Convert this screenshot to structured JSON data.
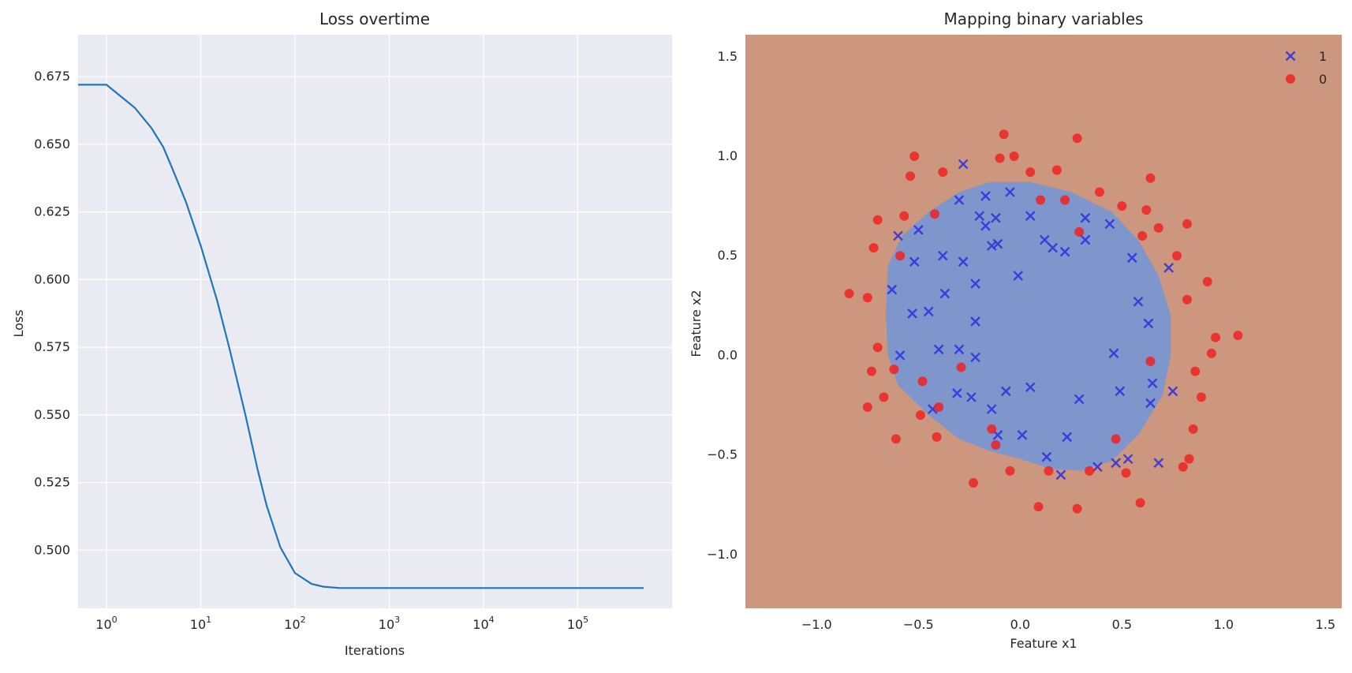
{
  "chart_data": [
    {
      "type": "line",
      "title": "Loss overtime",
      "xlabel": "Iterations",
      "ylabel": "Loss",
      "xscale": "log",
      "xlim": [
        0.5,
        1000000
      ],
      "ylim": [
        0.4785,
        0.6905
      ],
      "x_tick_labels": [
        "10^0",
        "10^1",
        "10^2",
        "10^3",
        "10^4",
        "10^5"
      ],
      "y_ticks": [
        0.5,
        0.525,
        0.55,
        0.575,
        0.6,
        0.625,
        0.65,
        0.675
      ],
      "y_tick_labels": [
        "0.500",
        "0.525",
        "0.550",
        "0.575",
        "0.600",
        "0.625",
        "0.650",
        "0.675"
      ],
      "grid": true,
      "series": [
        {
          "color": "#1f77b4",
          "x": [
            0.5,
            1,
            2,
            3,
            4,
            5,
            7,
            10,
            15,
            20,
            30,
            40,
            50,
            70,
            100,
            150,
            200,
            300,
            500,
            1000,
            10000,
            100000,
            500000
          ],
          "y": [
            0.672,
            0.672,
            0.6635,
            0.656,
            0.649,
            0.641,
            0.6285,
            0.6125,
            0.592,
            0.575,
            0.5495,
            0.53,
            0.5165,
            0.501,
            0.4915,
            0.4875,
            0.4865,
            0.486,
            0.486,
            0.486,
            0.486,
            0.486,
            0.486
          ]
        }
      ]
    },
    {
      "type": "scatter",
      "title": "Mapping binary variables",
      "xlabel": "Feature x1",
      "ylabel": "Feature x2",
      "xlim": [
        -1.35,
        1.58
      ],
      "ylim": [
        -1.27,
        1.61
      ],
      "x_ticks": [
        -1.0,
        -0.5,
        0.0,
        0.5,
        1.0,
        1.5
      ],
      "x_tick_labels": [
        "−1.0",
        "−0.5",
        "0.0",
        "0.5",
        "1.0",
        "1.5"
      ],
      "y_ticks": [
        -1.0,
        -0.5,
        0.0,
        0.5,
        1.0,
        1.5
      ],
      "y_tick_labels": [
        "−1.0",
        "−0.5",
        "0.0",
        "0.5",
        "1.0",
        "1.5"
      ],
      "legend_position": "top-right",
      "background_color": "#cc977e",
      "region_color": "#7f96cc",
      "decision_region_polygon": [
        [
          -0.65,
          0.45
        ],
        [
          -0.58,
          0.6
        ],
        [
          -0.45,
          0.72
        ],
        [
          -0.3,
          0.82
        ],
        [
          -0.15,
          0.87
        ],
        [
          0.05,
          0.87
        ],
        [
          0.25,
          0.82
        ],
        [
          0.45,
          0.72
        ],
        [
          0.58,
          0.58
        ],
        [
          0.68,
          0.4
        ],
        [
          0.74,
          0.2
        ],
        [
          0.74,
          0.0
        ],
        [
          0.7,
          -0.2
        ],
        [
          0.58,
          -0.4
        ],
        [
          0.45,
          -0.53
        ],
        [
          0.3,
          -0.58
        ],
        [
          0.15,
          -0.57
        ],
        [
          0.0,
          -0.52
        ],
        [
          -0.15,
          -0.48
        ],
        [
          -0.3,
          -0.42
        ],
        [
          -0.45,
          -0.3
        ],
        [
          -0.6,
          -0.15
        ],
        [
          -0.65,
          0.0
        ],
        [
          -0.66,
          0.2
        ]
      ],
      "series": [
        {
          "name": "1",
          "marker": "x",
          "color": "#3333dd",
          "points": [
            [
              -0.28,
              0.96
            ],
            [
              -0.3,
              0.78
            ],
            [
              -0.17,
              0.8
            ],
            [
              -0.05,
              0.82
            ],
            [
              -0.2,
              0.7
            ],
            [
              -0.17,
              0.65
            ],
            [
              -0.12,
              0.69
            ],
            [
              -0.14,
              0.55
            ],
            [
              -0.11,
              0.56
            ],
            [
              0.05,
              0.7
            ],
            [
              0.12,
              0.58
            ],
            [
              0.16,
              0.54
            ],
            [
              0.22,
              0.52
            ],
            [
              0.32,
              0.58
            ],
            [
              0.32,
              0.69
            ],
            [
              0.44,
              0.66
            ],
            [
              0.55,
              0.49
            ],
            [
              0.73,
              0.44
            ],
            [
              0.58,
              0.27
            ],
            [
              0.63,
              0.16
            ],
            [
              -0.6,
              0.6
            ],
            [
              -0.5,
              0.63
            ],
            [
              -0.52,
              0.47
            ],
            [
              -0.38,
              0.5
            ],
            [
              -0.28,
              0.47
            ],
            [
              -0.22,
              0.36
            ],
            [
              -0.37,
              0.31
            ],
            [
              -0.63,
              0.33
            ],
            [
              -0.53,
              0.21
            ],
            [
              -0.45,
              0.22
            ],
            [
              -0.22,
              0.17
            ],
            [
              -0.01,
              0.4
            ],
            [
              -0.59,
              0.0
            ],
            [
              -0.4,
              0.03
            ],
            [
              -0.3,
              0.03
            ],
            [
              -0.22,
              -0.01
            ],
            [
              -0.31,
              -0.19
            ],
            [
              -0.24,
              -0.21
            ],
            [
              -0.07,
              -0.18
            ],
            [
              -0.14,
              -0.27
            ],
            [
              0.05,
              -0.16
            ],
            [
              0.29,
              -0.22
            ],
            [
              0.46,
              0.01
            ],
            [
              0.49,
              -0.18
            ],
            [
              0.65,
              -0.14
            ],
            [
              0.64,
              -0.24
            ],
            [
              0.75,
              -0.18
            ],
            [
              -0.43,
              -0.27
            ],
            [
              -0.11,
              -0.4
            ],
            [
              0.01,
              -0.4
            ],
            [
              0.23,
              -0.41
            ],
            [
              0.13,
              -0.51
            ],
            [
              0.2,
              -0.6
            ],
            [
              0.38,
              -0.56
            ],
            [
              0.47,
              -0.54
            ],
            [
              0.53,
              -0.52
            ],
            [
              0.68,
              -0.54
            ]
          ]
        },
        {
          "name": "0",
          "marker": "o",
          "color": "#ee2222",
          "points": [
            [
              -0.08,
              1.11
            ],
            [
              0.28,
              1.09
            ],
            [
              -0.1,
              0.99
            ],
            [
              -0.03,
              1.0
            ],
            [
              -0.52,
              1.0
            ],
            [
              -0.38,
              0.92
            ],
            [
              -0.54,
              0.9
            ],
            [
              0.05,
              0.92
            ],
            [
              0.18,
              0.93
            ],
            [
              0.64,
              0.89
            ],
            [
              0.39,
              0.82
            ],
            [
              0.1,
              0.78
            ],
            [
              0.22,
              0.78
            ],
            [
              0.5,
              0.75
            ],
            [
              0.62,
              0.73
            ],
            [
              -0.42,
              0.71
            ],
            [
              -0.57,
              0.7
            ],
            [
              -0.7,
              0.68
            ],
            [
              0.68,
              0.64
            ],
            [
              0.82,
              0.66
            ],
            [
              0.29,
              0.62
            ],
            [
              0.6,
              0.6
            ],
            [
              -0.72,
              0.54
            ],
            [
              -0.59,
              0.5
            ],
            [
              0.77,
              0.5
            ],
            [
              0.92,
              0.37
            ],
            [
              -0.84,
              0.31
            ],
            [
              -0.75,
              0.29
            ],
            [
              0.82,
              0.28
            ],
            [
              0.96,
              0.09
            ],
            [
              1.07,
              0.1
            ],
            [
              -0.7,
              0.04
            ],
            [
              0.94,
              0.01
            ],
            [
              0.64,
              -0.03
            ],
            [
              -0.62,
              -0.07
            ],
            [
              -0.73,
              -0.08
            ],
            [
              -0.29,
              -0.06
            ],
            [
              0.86,
              -0.08
            ],
            [
              -0.48,
              -0.13
            ],
            [
              -0.67,
              -0.21
            ],
            [
              0.89,
              -0.21
            ],
            [
              -0.75,
              -0.26
            ],
            [
              -0.4,
              -0.26
            ],
            [
              -0.49,
              -0.3
            ],
            [
              -0.14,
              -0.37
            ],
            [
              0.85,
              -0.37
            ],
            [
              -0.61,
              -0.42
            ],
            [
              -0.41,
              -0.41
            ],
            [
              -0.12,
              -0.45
            ],
            [
              0.47,
              -0.42
            ],
            [
              0.83,
              -0.52
            ],
            [
              0.8,
              -0.56
            ],
            [
              -0.05,
              -0.58
            ],
            [
              0.14,
              -0.58
            ],
            [
              0.34,
              -0.58
            ],
            [
              0.52,
              -0.59
            ],
            [
              -0.23,
              -0.64
            ],
            [
              0.09,
              -0.76
            ],
            [
              0.28,
              -0.77
            ],
            [
              0.59,
              -0.74
            ]
          ]
        }
      ]
    }
  ]
}
